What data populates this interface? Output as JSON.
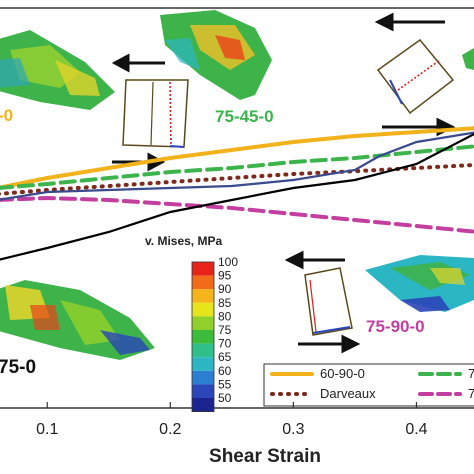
{
  "chart_data": {
    "type": "line",
    "xlabel": "Shear Strain",
    "ylabel": "",
    "title": "",
    "xlim": [
      0.06,
      0.45
    ],
    "ylim": [
      0,
      1
    ],
    "x_ticks": [
      "0.1",
      "0.2",
      "0.3",
      "0.4"
    ],
    "x_tick_values": [
      0.1,
      0.2,
      0.3,
      0.4
    ],
    "series": [
      {
        "name": "60-90-0",
        "color": "#f2b21c",
        "dash": "solid",
        "points": [
          [
            0.06,
            0.55
          ],
          [
            0.1,
            0.575
          ],
          [
            0.15,
            0.6
          ],
          [
            0.2,
            0.625
          ],
          [
            0.25,
            0.645
          ],
          [
            0.3,
            0.665
          ],
          [
            0.35,
            0.68
          ],
          [
            0.4,
            0.69
          ],
          [
            0.45,
            0.7
          ]
        ]
      },
      {
        "name": "75-45-0",
        "color": "#3cb44b",
        "dash": "dashed",
        "points": [
          [
            0.06,
            0.55
          ],
          [
            0.1,
            0.56
          ],
          [
            0.15,
            0.575
          ],
          [
            0.2,
            0.59
          ],
          [
            0.25,
            0.6
          ],
          [
            0.3,
            0.615
          ],
          [
            0.35,
            0.625
          ],
          [
            0.4,
            0.64
          ],
          [
            0.45,
            0.655
          ]
        ]
      },
      {
        "name": "Darveaux",
        "color": "#7b2a1c",
        "dash": "dotted",
        "points": [
          [
            0.06,
            0.535
          ],
          [
            0.1,
            0.545
          ],
          [
            0.15,
            0.555
          ],
          [
            0.2,
            0.565
          ],
          [
            0.25,
            0.575
          ],
          [
            0.3,
            0.585
          ],
          [
            0.35,
            0.592
          ],
          [
            0.4,
            0.6
          ],
          [
            0.45,
            0.608
          ]
        ]
      },
      {
        "name": "75-90-0",
        "color": "#c23fa0",
        "dash": "dashed",
        "points": [
          [
            0.06,
            0.52
          ],
          [
            0.1,
            0.525
          ],
          [
            0.15,
            0.52
          ],
          [
            0.2,
            0.51
          ],
          [
            0.25,
            0.5
          ],
          [
            0.3,
            0.485
          ],
          [
            0.35,
            0.47
          ],
          [
            0.4,
            0.455
          ],
          [
            0.45,
            0.44
          ]
        ]
      },
      {
        "name": "",
        "color": "#3a4a8e",
        "dash": "solid",
        "points": [
          [
            0.06,
            0.52
          ],
          [
            0.1,
            0.54
          ],
          [
            0.15,
            0.545
          ],
          [
            0.2,
            0.55
          ],
          [
            0.25,
            0.555
          ],
          [
            0.3,
            0.57
          ],
          [
            0.35,
            0.595
          ],
          [
            0.37,
            0.63
          ],
          [
            0.4,
            0.665
          ],
          [
            0.45,
            0.69
          ]
        ]
      },
      {
        "name": "",
        "color": "#000000",
        "dash": "solid",
        "points": [
          [
            0.06,
            0.37
          ],
          [
            0.1,
            0.4
          ],
          [
            0.15,
            0.44
          ],
          [
            0.2,
            0.49
          ],
          [
            0.25,
            0.52
          ],
          [
            0.3,
            0.55
          ],
          [
            0.35,
            0.57
          ],
          [
            0.4,
            0.61
          ],
          [
            0.45,
            0.69
          ]
        ]
      }
    ],
    "annotations": [
      "75-45-0",
      "75-90-0",
      "-0",
      "75-0"
    ],
    "colorbar": {
      "title": "v. Mises, MPa",
      "ticks": [
        "100",
        "95",
        "90",
        "85",
        "80",
        "75",
        "70",
        "65",
        "60",
        "55",
        "50"
      ],
      "colors": [
        "#e8231a",
        "#f26b1a",
        "#f6b31b",
        "#e6e51c",
        "#8fd02a",
        "#3dbb3a",
        "#2fc08a",
        "#2bb6c4",
        "#2b7fd0",
        "#2a46b8",
        "#1a238f"
      ]
    },
    "legend": {
      "position": "bottom-right",
      "entries": [
        {
          "label": "60-90-0",
          "series": 0
        },
        {
          "label": "7",
          "series": 1
        },
        {
          "label": "Darveaux",
          "series": 2
        },
        {
          "label": "7",
          "series": 3
        }
      ]
    },
    "grid": false
  }
}
